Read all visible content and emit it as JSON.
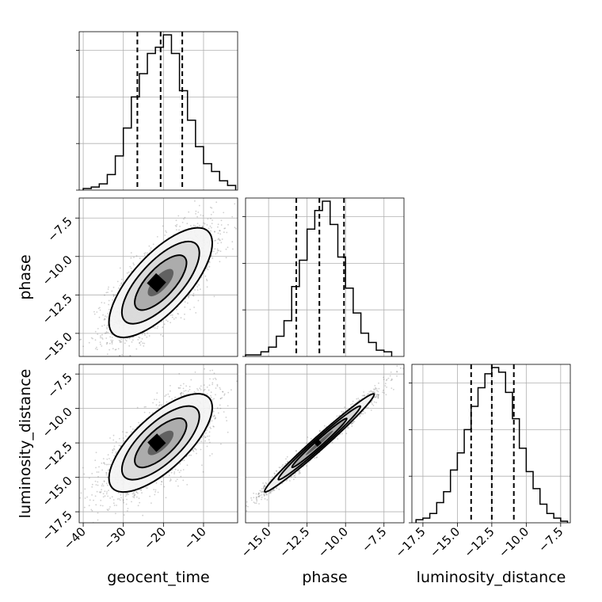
{
  "chart_data": {
    "type": "corner",
    "parameters": [
      "geocent_time",
      "phase",
      "luminosity_distance"
    ],
    "axis_labels": {
      "x": [
        "geocent_time",
        "phase",
        "luminosity_distance"
      ],
      "y": [
        "",
        "phase",
        "luminosity_distance"
      ]
    },
    "ranges": {
      "geocent_time": [
        -41,
        -1.5
      ],
      "phase": [
        -16.5,
        -6.2
      ],
      "luminosity_distance": [
        -18.3,
        -6.8
      ]
    },
    "ticks": {
      "geocent_time": [
        -40,
        -30,
        -20,
        -10
      ],
      "phase": [
        -15.0,
        -12.5,
        -10.0,
        -7.5
      ],
      "luminosity_distance": [
        -17.5,
        -15.0,
        -12.5,
        -10.0,
        -7.5
      ]
    },
    "tick_labels": {
      "geocent_time": [
        "−40",
        "−30",
        "−20",
        "−10"
      ],
      "phase": [
        "−15.0",
        "−12.5",
        "−10.0",
        "−7.5"
      ],
      "luminosity_distance": [
        "−17.5",
        "−15.0",
        "−12.5",
        "−10.0",
        "−7.5"
      ]
    },
    "quantiles": {
      "geocent_time": [
        -26.5,
        -20.7,
        -15.3
      ],
      "phase": [
        -13.2,
        -11.7,
        -10.1
      ],
      "luminosity_distance": [
        -14.0,
        -12.5,
        -10.9
      ]
    },
    "histograms": {
      "geocent_time": {
        "edges": [
          -40,
          -38,
          -36,
          -34,
          -32,
          -30,
          -28,
          -26,
          -24,
          -22,
          -20,
          -18,
          -16,
          -14,
          -12,
          -10,
          -8,
          -6,
          -4,
          -2
        ],
        "counts": [
          1,
          2,
          4,
          10,
          22,
          40,
          60,
          75,
          88,
          92,
          100,
          88,
          64,
          45,
          28,
          17,
          12,
          6,
          3
        ]
      },
      "phase": {
        "edges": [
          -16.5,
          -16.0,
          -15.5,
          -15.0,
          -14.5,
          -14.0,
          -13.5,
          -13.0,
          -12.5,
          -12.0,
          -11.5,
          -11.0,
          -10.5,
          -10.0,
          -9.5,
          -9.0,
          -8.5,
          -8.0,
          -7.5,
          -7.0
        ],
        "counts": [
          1,
          1,
          3,
          6,
          13,
          23,
          45,
          62,
          82,
          94,
          100,
          85,
          64,
          44,
          28,
          15,
          9,
          4,
          3
        ]
      },
      "luminosity_distance": {
        "edges": [
          -18.0,
          -17.5,
          -17.0,
          -16.5,
          -16.0,
          -15.5,
          -15.0,
          -14.5,
          -14.0,
          -13.5,
          -13.0,
          -12.5,
          -12.0,
          -11.5,
          -11.0,
          -10.5,
          -10.0,
          -9.5,
          -9.0,
          -8.5,
          -8.0,
          -7.5,
          -7.0
        ],
        "counts": [
          2,
          3,
          6,
          13,
          20,
          34,
          45,
          60,
          75,
          87,
          96,
          100,
          97,
          84,
          67,
          48,
          33,
          22,
          12,
          6,
          3,
          1
        ]
      }
    },
    "correlations": {
      "phase|geocent_time": 0.72,
      "luminosity_distance|geocent_time": 0.72,
      "luminosity_distance|phase": 0.985
    },
    "contour_levels_sigma": [
      0.5,
      1.0,
      1.5,
      2.0
    ]
  }
}
